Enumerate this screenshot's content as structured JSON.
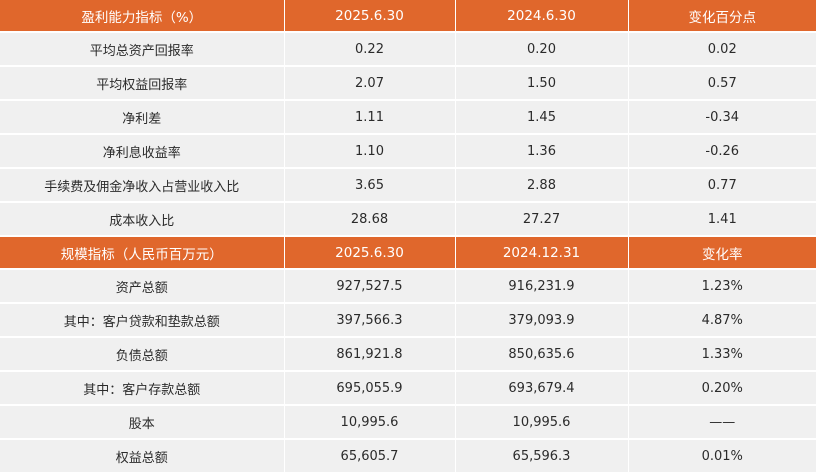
{
  "profitability": {
    "headers": [
      "盈利能力指标（%）",
      "2025.6.30",
      "2024.6.30",
      "变化百分点"
    ],
    "rows": [
      [
        "平均总资产回报率",
        "0.22",
        "0.20",
        "0.02"
      ],
      [
        "平均权益回报率",
        "2.07",
        "1.50",
        "0.57"
      ],
      [
        "净利差",
        "1.11",
        "1.45",
        "-0.34"
      ],
      [
        "净利息收益率",
        "1.10",
        "1.36",
        "-0.26"
      ],
      [
        "手续费及佣金净收入占营业收入比",
        "3.65",
        "2.88",
        "0.77"
      ],
      [
        "成本收入比",
        "28.68",
        "27.27",
        "1.41"
      ]
    ]
  },
  "scale": {
    "headers": [
      "规模指标（人民币百万元）",
      "2025.6.30",
      "2024.12.31",
      "变化率"
    ],
    "rows": [
      [
        "资产总额",
        "927,527.5",
        "916,231.9",
        "1.23%"
      ],
      [
        "其中：客户贷款和垫款总额",
        "397,566.3",
        "379,093.9",
        "4.87%"
      ],
      [
        "负债总额",
        "861,921.8",
        "850,635.6",
        "1.33%"
      ],
      [
        "其中：客户存款总额",
        "695,055.9",
        "693,679.4",
        "0.20%"
      ],
      [
        "股本",
        "10,995.6",
        "10,995.6",
        "——"
      ],
      [
        "权益总额",
        "65,605.7",
        "65,596.3",
        "0.01%"
      ]
    ]
  }
}
